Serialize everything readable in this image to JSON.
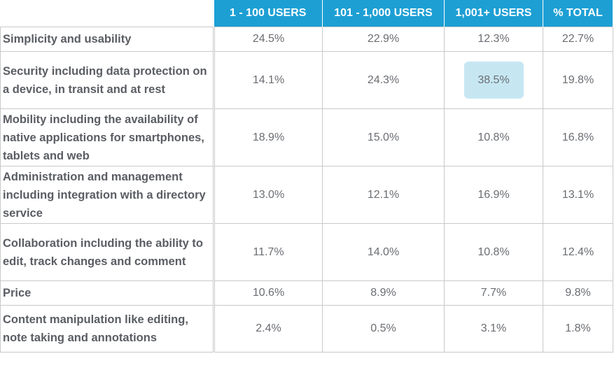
{
  "chart_data": {
    "type": "table",
    "columns": [
      "1 - 100 USERS",
      "101 - 1,000 USERS",
      "1,001+ USERS",
      "% TOTAL"
    ],
    "rows": [
      {
        "label": "Simplicity and usability",
        "values": [
          "24.5%",
          "22.9%",
          "12.3%",
          "22.7%"
        ]
      },
      {
        "label": "Security including data protection on a device, in transit and at rest",
        "values": [
          "14.1%",
          "24.3%",
          "38.5%",
          "19.8%"
        ]
      },
      {
        "label": "Mobility including the availability of native applications for smartphones, tablets and web",
        "values": [
          "18.9%",
          "15.0%",
          "10.8%",
          "16.8%"
        ]
      },
      {
        "label": "Administration and management including integration with a directory service",
        "values": [
          "13.0%",
          "12.1%",
          "16.9%",
          "13.1%"
        ]
      },
      {
        "label": "Collaboration including the ability to edit, track changes and comment",
        "values": [
          "11.7%",
          "14.0%",
          "10.8%",
          "12.4%"
        ]
      },
      {
        "label": "Price",
        "values": [
          "10.6%",
          "8.9%",
          "7.7%",
          "9.8%"
        ]
      },
      {
        "label": "Content manipulation like editing, note taking and annotations",
        "values": [
          "2.4%",
          "0.5%",
          "3.1%",
          "1.8%"
        ]
      }
    ],
    "highlight": {
      "row": 1,
      "col": 2
    },
    "colors": {
      "header": "#1d9fd4",
      "header_text": "#ffffff",
      "highlight": "#c6e7f2",
      "text": "#6a6d72",
      "border": "#c9c9c9"
    }
  }
}
